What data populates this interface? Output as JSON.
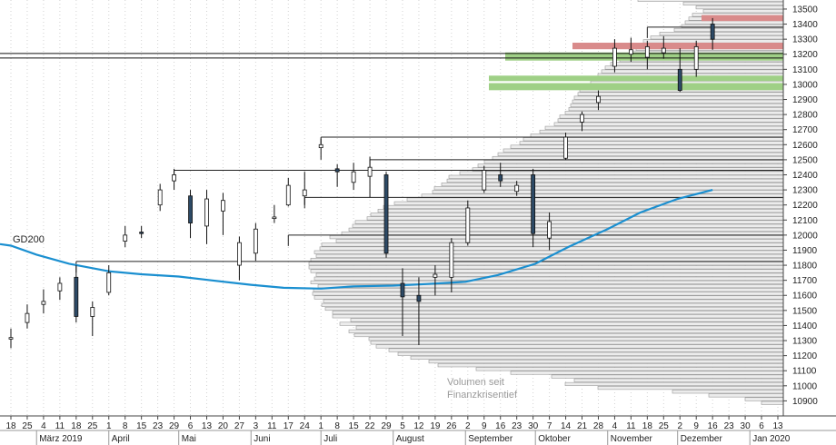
{
  "chart_data": {
    "type": "candlestick",
    "ylim": [
      10800,
      13560
    ],
    "y_ticks": [
      10900,
      11000,
      11100,
      11200,
      11300,
      11400,
      11500,
      11600,
      11700,
      11800,
      11900,
      12000,
      12100,
      12200,
      12300,
      12400,
      12500,
      12600,
      12700,
      12800,
      12900,
      13000,
      13100,
      13200,
      13300,
      13400,
      13500
    ],
    "x_day_ticks": [
      "18",
      "25",
      "4",
      "11",
      "18",
      "25",
      "1",
      "8",
      "15",
      "23",
      "29",
      "6",
      "13",
      "20",
      "27",
      "3",
      "11",
      "17",
      "24",
      "1",
      "8",
      "15",
      "22",
      "29",
      "5",
      "12",
      "19",
      "26",
      "2",
      "9",
      "16",
      "23",
      "30",
      "7",
      "14",
      "21",
      "28",
      "4",
      "11",
      "18",
      "25",
      "2",
      "9",
      "16",
      "23",
      "30",
      "6",
      "13"
    ],
    "x_month_labels": [
      "März 2019",
      "April",
      "Mai",
      "Juni",
      "Juli",
      "August",
      "September",
      "Oktober",
      "November",
      "Dezember",
      "Jan 2020"
    ],
    "date_range": [
      "2019-02-18",
      "2020-01-13"
    ],
    "ma_label": "GD200",
    "moving_average": {
      "name": "GD200",
      "color": "#1a8fd0",
      "points": [
        [
          "2019-02-18",
          11930
        ],
        [
          "2019-03-01",
          11870
        ],
        [
          "2019-03-15",
          11810
        ],
        [
          "2019-04-01",
          11760
        ],
        [
          "2019-04-15",
          11740
        ],
        [
          "2019-05-01",
          11725
        ],
        [
          "2019-05-15",
          11700
        ],
        [
          "2019-06-01",
          11670
        ],
        [
          "2019-06-15",
          11650
        ],
        [
          "2019-07-01",
          11645
        ],
        [
          "2019-07-15",
          11660
        ],
        [
          "2019-08-01",
          11665
        ],
        [
          "2019-08-15",
          11675
        ],
        [
          "2019-09-01",
          11690
        ],
        [
          "2019-09-15",
          11735
        ],
        [
          "2019-10-01",
          11810
        ],
        [
          "2019-10-15",
          11920
        ],
        [
          "2019-11-01",
          12040
        ],
        [
          "2019-11-15",
          12150
        ],
        [
          "2019-12-01",
          12240
        ],
        [
          "2019-12-16",
          12300
        ]
      ]
    },
    "candles": [
      [
        "2019-02-18",
        11310,
        11320,
        11250,
        11380
      ],
      [
        "2019-02-25",
        11420,
        11480,
        11380,
        11540
      ],
      [
        "2019-03-04",
        11540,
        11560,
        11480,
        11640
      ],
      [
        "2019-03-11",
        11630,
        11680,
        11570,
        11720
      ],
      [
        "2019-03-18",
        11720,
        11460,
        11420,
        11800
      ],
      [
        "2019-03-25",
        11460,
        11520,
        11330,
        11560
      ],
      [
        "2019-04-01",
        11620,
        11750,
        11600,
        11800
      ],
      [
        "2019-04-08",
        11960,
        12000,
        11920,
        12060
      ],
      [
        "2019-04-15",
        12020,
        12010,
        11980,
        12060
      ],
      [
        "2019-04-23",
        12200,
        12300,
        12160,
        12340
      ],
      [
        "2019-04-29",
        12360,
        12400,
        12300,
        12440
      ],
      [
        "2019-05-06",
        12260,
        12080,
        11980,
        12300
      ],
      [
        "2019-05-13",
        12060,
        12240,
        11940,
        12300
      ],
      [
        "2019-05-20",
        12160,
        12230,
        12000,
        12280
      ],
      [
        "2019-05-27",
        11800,
        11950,
        11700,
        11990
      ],
      [
        "2019-06-03",
        11880,
        12040,
        11830,
        12080
      ],
      [
        "2019-06-11",
        12110,
        12120,
        12080,
        12200
      ],
      [
        "2019-06-17",
        12200,
        12330,
        12190,
        12380
      ],
      [
        "2019-06-24",
        12260,
        12300,
        12200,
        12420
      ],
      [
        "2019-07-01",
        12580,
        12600,
        12500,
        12640
      ],
      [
        "2019-07-08",
        12440,
        12420,
        12320,
        12470
      ],
      [
        "2019-07-15",
        12350,
        12420,
        12300,
        12480
      ],
      [
        "2019-07-22",
        12390,
        12450,
        12250,
        12520
      ],
      [
        "2019-07-29",
        12400,
        11880,
        11850,
        12420
      ],
      [
        "2019-08-05",
        11680,
        11590,
        11330,
        11780
      ],
      [
        "2019-08-12",
        11600,
        11560,
        11270,
        11720
      ],
      [
        "2019-08-19",
        11720,
        11740,
        11600,
        11800
      ],
      [
        "2019-08-26",
        11720,
        11950,
        11620,
        11980
      ],
      [
        "2019-09-02",
        11950,
        12180,
        11930,
        12230
      ],
      [
        "2019-09-09",
        12300,
        12430,
        12280,
        12460
      ],
      [
        "2019-09-16",
        12400,
        12360,
        12320,
        12480
      ],
      [
        "2019-09-23",
        12290,
        12330,
        12260,
        12360
      ],
      [
        "2019-09-30",
        12400,
        12010,
        11920,
        12440
      ],
      [
        "2019-10-07",
        11980,
        12090,
        11900,
        12150
      ],
      [
        "2019-10-14",
        12510,
        12650,
        12500,
        12680
      ],
      [
        "2019-10-21",
        12750,
        12800,
        12690,
        12820
      ],
      [
        "2019-10-28",
        12880,
        12920,
        12830,
        12960
      ],
      [
        "2019-11-04",
        13120,
        13240,
        13080,
        13300
      ],
      [
        "2019-11-11",
        13200,
        13230,
        13150,
        13310
      ],
      [
        "2019-11-18",
        13180,
        13250,
        13100,
        13290
      ],
      [
        "2019-11-25",
        13210,
        13240,
        13170,
        13320
      ],
      [
        "2019-12-02",
        13100,
        12960,
        12950,
        13240
      ],
      [
        "2019-12-09",
        13100,
        13250,
        13050,
        13290
      ],
      [
        "2019-12-16",
        13400,
        13300,
        13230,
        13440
      ]
    ],
    "volume_profile": {
      "bin_size": 25,
      "start": 10875,
      "lengths": [
        24,
        42,
        82,
        122,
        204,
        240,
        230,
        255,
        300,
        338,
        380,
        390,
        410,
        424,
        434,
        448,
        454,
        456,
        472,
        478,
        470,
        488,
        476,
        496,
        496,
        504,
        508,
        506,
        516,
        518,
        517,
        512,
        520,
        516,
        514,
        520,
        522,
        522,
        520,
        514,
        516,
        510,
        508,
        492,
        499,
        486,
        478,
        474,
        471,
        458,
        454,
        446,
        440,
        428,
        414,
        398,
        386,
        384,
        376,
        370,
        368,
        356,
        342,
        336,
        329,
        320,
        314,
        308,
        300,
        290,
        286,
        278,
        268,
        262,
        252,
        248,
        246,
        240,
        236,
        234,
        232,
        230,
        226,
        224,
        216,
        212,
        208,
        204,
        200,
        196,
        190,
        180,
        172,
        166,
        162,
        158,
        154,
        146,
        136,
        120,
        112,
        108,
        104,
        100,
        88,
        96,
        110,
        160,
        220,
        232,
        236,
        240,
        256,
        288,
        300,
        304,
        296,
        282,
        274,
        268,
        246,
        232,
        228,
        222,
        206,
        194,
        182,
        174,
        164,
        154,
        148,
        136,
        128,
        120,
        108,
        96,
        86,
        80,
        72,
        64,
        58,
        52,
        48,
        44,
        40,
        38,
        34,
        30,
        26,
        22,
        20,
        18,
        16,
        14,
        12,
        10,
        8,
        8,
        6,
        6,
        4,
        4,
        4,
        3,
        3,
        2,
        2,
        2,
        1,
        1
      ]
    },
    "zones": [
      {
        "color": "#d98b8b",
        "price": 13440,
        "height": 22
      },
      {
        "color": "#d98b8b",
        "price": 13255,
        "height": 24
      },
      {
        "color": "#9fd086",
        "price": 13185,
        "height": 30
      },
      {
        "color": "#9fd086",
        "price": 13040,
        "height": 20
      },
      {
        "color": "#9fd086",
        "price": 12985,
        "height": 26
      }
    ],
    "hlines": [
      {
        "price": 13205
      },
      {
        "price": 13175
      }
    ],
    "resistance_steps": [
      {
        "from": "2019-03-18",
        "price": 11825
      },
      {
        "from": "2019-04-29",
        "price": 12430
      },
      {
        "from": "2019-06-24",
        "price": 12250
      },
      {
        "from": "2019-06-17",
        "price": 12000
      },
      {
        "from": "2019-07-01",
        "price": 12650
      },
      {
        "from": "2019-07-22",
        "price": 12500
      },
      {
        "from": "2019-11-18",
        "price": 13380
      }
    ],
    "annotation": [
      "Volumen seit",
      "Finanzkrisentief"
    ]
  }
}
